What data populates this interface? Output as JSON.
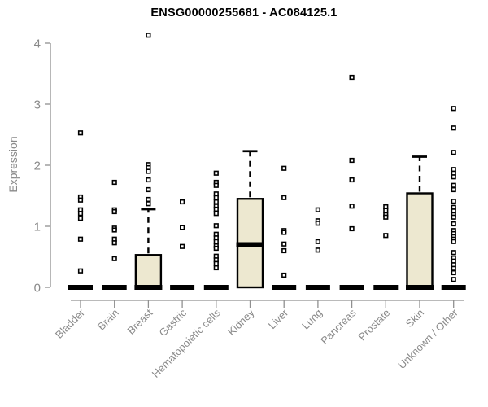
{
  "chart_data": {
    "type": "boxplot",
    "title": "ENSG00000255681 - AC084125.1",
    "ylabel": "Expression",
    "xlabel": "",
    "ylim": [
      0,
      4
    ],
    "yticks": [
      0,
      1,
      2,
      3,
      4
    ],
    "grid": false,
    "legend": "none",
    "colors": {
      "box_fill": "#EDE8D0",
      "box_border": "#000000",
      "median": "#000000",
      "whisker": "#000000",
      "outlier_fill": "#FFFFFF",
      "outlier_stroke": "#000000",
      "axis_line": "#909090",
      "axis_text": "#8A8A8A",
      "title_text": "#000000"
    },
    "categories": [
      "Bladder",
      "Brain",
      "Breast",
      "Gastric",
      "Hematopoietic cells",
      "Kidney",
      "Liver",
      "Lung",
      "Pancreas",
      "Prostate",
      "Skin",
      "Unknown / Other"
    ],
    "series": [
      {
        "name": "Bladder",
        "q1": 0,
        "median": 0,
        "q3": 0,
        "whisker_low": 0,
        "whisker_high": 0,
        "outliers": [
          2.53,
          1.48,
          1.43,
          1.27,
          1.21,
          1.13,
          0.79,
          0.27
        ]
      },
      {
        "name": "Brain",
        "q1": 0,
        "median": 0,
        "q3": 0,
        "whisker_low": 0,
        "whisker_high": 0,
        "outliers": [
          1.72,
          1.27,
          1.24,
          0.97,
          0.94,
          0.79,
          0.73,
          0.47
        ]
      },
      {
        "name": "Breast",
        "q1": 0,
        "median": 0,
        "q3": 0.53,
        "whisker_low": 0,
        "whisker_high": 1.28,
        "outliers": [
          4.13,
          2.01,
          1.96,
          1.9,
          1.76,
          1.6,
          1.44,
          1.37
        ]
      },
      {
        "name": "Gastric",
        "q1": 0,
        "median": 0,
        "q3": 0,
        "whisker_low": 0,
        "whisker_high": 0,
        "outliers": [
          1.4,
          0.98,
          0.67
        ]
      },
      {
        "name": "Hematopoietic cells",
        "q1": 0,
        "median": 0,
        "q3": 0,
        "whisker_low": 0,
        "whisker_high": 0,
        "outliers": [
          1.87,
          1.72,
          1.67,
          1.53,
          1.47,
          1.4,
          1.33,
          1.28,
          1.21,
          1.01,
          0.87,
          0.81,
          0.75,
          0.68,
          0.64,
          0.51,
          0.45,
          0.39,
          0.32
        ]
      },
      {
        "name": "Kidney",
        "q1": 0,
        "median": 0.7,
        "q3": 1.45,
        "whisker_low": 0,
        "whisker_high": 2.23,
        "outliers": []
      },
      {
        "name": "Liver",
        "q1": 0,
        "median": 0,
        "q3": 0,
        "whisker_low": 0,
        "whisker_high": 0,
        "outliers": [
          1.95,
          1.47,
          0.93,
          0.9,
          0.71,
          0.6,
          0.2
        ]
      },
      {
        "name": "Lung",
        "q1": 0,
        "median": 0,
        "q3": 0,
        "whisker_low": 0,
        "whisker_high": 0,
        "outliers": [
          1.27,
          1.09,
          1.05,
          0.75,
          0.61
        ]
      },
      {
        "name": "Pancreas",
        "q1": 0,
        "median": 0,
        "q3": 0,
        "whisker_low": 0,
        "whisker_high": 0,
        "outliers": [
          3.44,
          2.08,
          1.76,
          1.33,
          0.96
        ]
      },
      {
        "name": "Prostate",
        "q1": 0,
        "median": 0,
        "q3": 0,
        "whisker_low": 0,
        "whisker_high": 0,
        "outliers": [
          1.32,
          1.26,
          1.19,
          1.15,
          0.85
        ]
      },
      {
        "name": "Skin",
        "q1": 0,
        "median": 0,
        "q3": 1.54,
        "whisker_low": 0,
        "whisker_high": 2.14,
        "outliers": []
      },
      {
        "name": "Unknown / Other",
        "q1": 0,
        "median": 0,
        "q3": 0,
        "whisker_low": 0,
        "whisker_high": 0,
        "outliers": [
          2.93,
          2.61,
          2.21,
          1.93,
          1.87,
          1.81,
          1.67,
          1.6,
          1.41,
          1.31,
          1.25,
          1.19,
          1.15,
          1.04,
          0.93,
          0.88,
          0.83,
          0.79,
          0.75,
          0.57,
          0.48,
          0.43,
          0.37,
          0.31,
          0.24,
          0.13
        ]
      }
    ]
  }
}
